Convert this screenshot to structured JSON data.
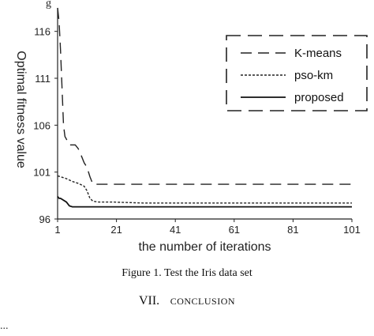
{
  "figure": {
    "top_fragment": "g",
    "caption": "Figure 1.   Test the Iris data set"
  },
  "section": {
    "number": "VII.",
    "title": "CONCLUSION"
  },
  "body_fragment": "     ...",
  "chart_data": {
    "type": "line",
    "title": "",
    "xlabel": "the number of iterations",
    "ylabel": "Optimal fitness value",
    "xlim": [
      1,
      101
    ],
    "ylim": [
      96,
      118.5
    ],
    "xticks": [
      1,
      21,
      41,
      61,
      81,
      101
    ],
    "yticks": [
      96,
      101,
      106,
      111,
      116
    ],
    "legend_position": "top-right",
    "grid": false,
    "series": [
      {
        "name": "K-means",
        "style": "dashed",
        "color": "#222222",
        "x": [
          1,
          1.5,
          2,
          2.5,
          3,
          3.5,
          4,
          5,
          6,
          7,
          8,
          9,
          10,
          11,
          12,
          13,
          101
        ],
        "y": [
          118.5,
          117,
          114,
          110,
          106,
          104.8,
          104.5,
          103.9,
          103.9,
          103.9,
          103.5,
          102.8,
          102.0,
          101.5,
          100.5,
          99.7,
          99.7
        ]
      },
      {
        "name": "pso-km",
        "style": "dotted",
        "color": "#222222",
        "x": [
          1,
          2,
          4,
          6,
          8,
          10,
          11,
          12,
          13,
          15,
          20,
          30,
          50,
          101
        ],
        "y": [
          100.6,
          100.5,
          100.3,
          100.0,
          99.8,
          99.5,
          99.0,
          98.2,
          97.9,
          97.8,
          97.8,
          97.7,
          97.7,
          97.7
        ]
      },
      {
        "name": "proposed",
        "style": "solid",
        "color": "#111111",
        "x": [
          1,
          1.5,
          2,
          3,
          4,
          5,
          6,
          8,
          12,
          20,
          101
        ],
        "y": [
          98.4,
          98.2,
          98.2,
          98.0,
          97.8,
          97.4,
          97.3,
          97.3,
          97.3,
          97.3,
          97.3
        ]
      }
    ]
  }
}
